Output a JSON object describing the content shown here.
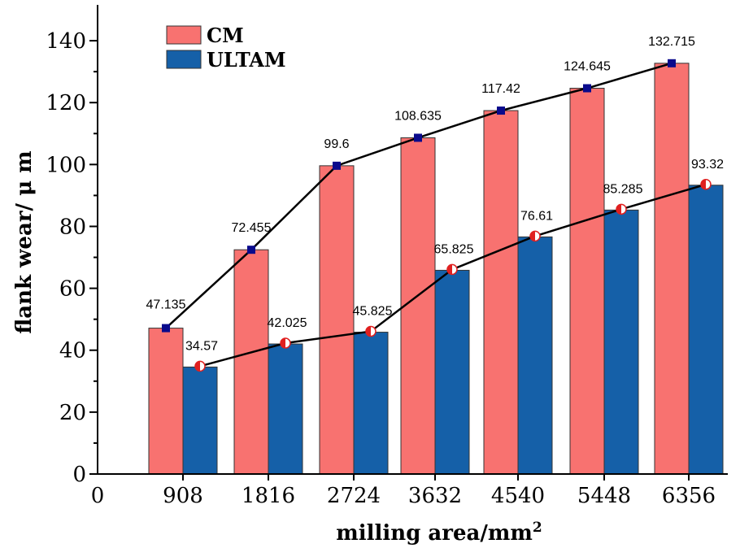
{
  "chart_data": {
    "type": "bar",
    "categories": [
      "908",
      "1816",
      "2724",
      "3632",
      "4540",
      "5448",
      "6356"
    ],
    "x_origin_label": "0",
    "series": [
      {
        "name": "CM",
        "values": [
          47.135,
          72.455,
          99.6,
          108.635,
          117.42,
          124.645,
          132.715
        ],
        "labels": [
          "47.135",
          "72.455",
          "99.6",
          "108.635",
          "117.42",
          "124.645",
          "132.715"
        ],
        "color": "#f87270",
        "marker_color": "#0a0a8c"
      },
      {
        "name": "ULTAM",
        "values": [
          34.57,
          42.025,
          45.825,
          65.825,
          76.61,
          85.285,
          93.32
        ],
        "labels": [
          "34.57",
          "42.025",
          "45.825",
          "65.825",
          "76.61",
          "85.285",
          "93.32"
        ],
        "color": "#1560a8",
        "marker_color": "#e02020"
      }
    ],
    "xlabel": "milling area/mm",
    "xlabel_sup": "2",
    "ylabel": "flank wear/ μ m",
    "ylim": [
      0,
      150
    ],
    "yticks": [
      0,
      20,
      40,
      60,
      80,
      100,
      120,
      140
    ],
    "legend_position": "top-left",
    "grid": false,
    "overlay": "line-with-markers"
  }
}
